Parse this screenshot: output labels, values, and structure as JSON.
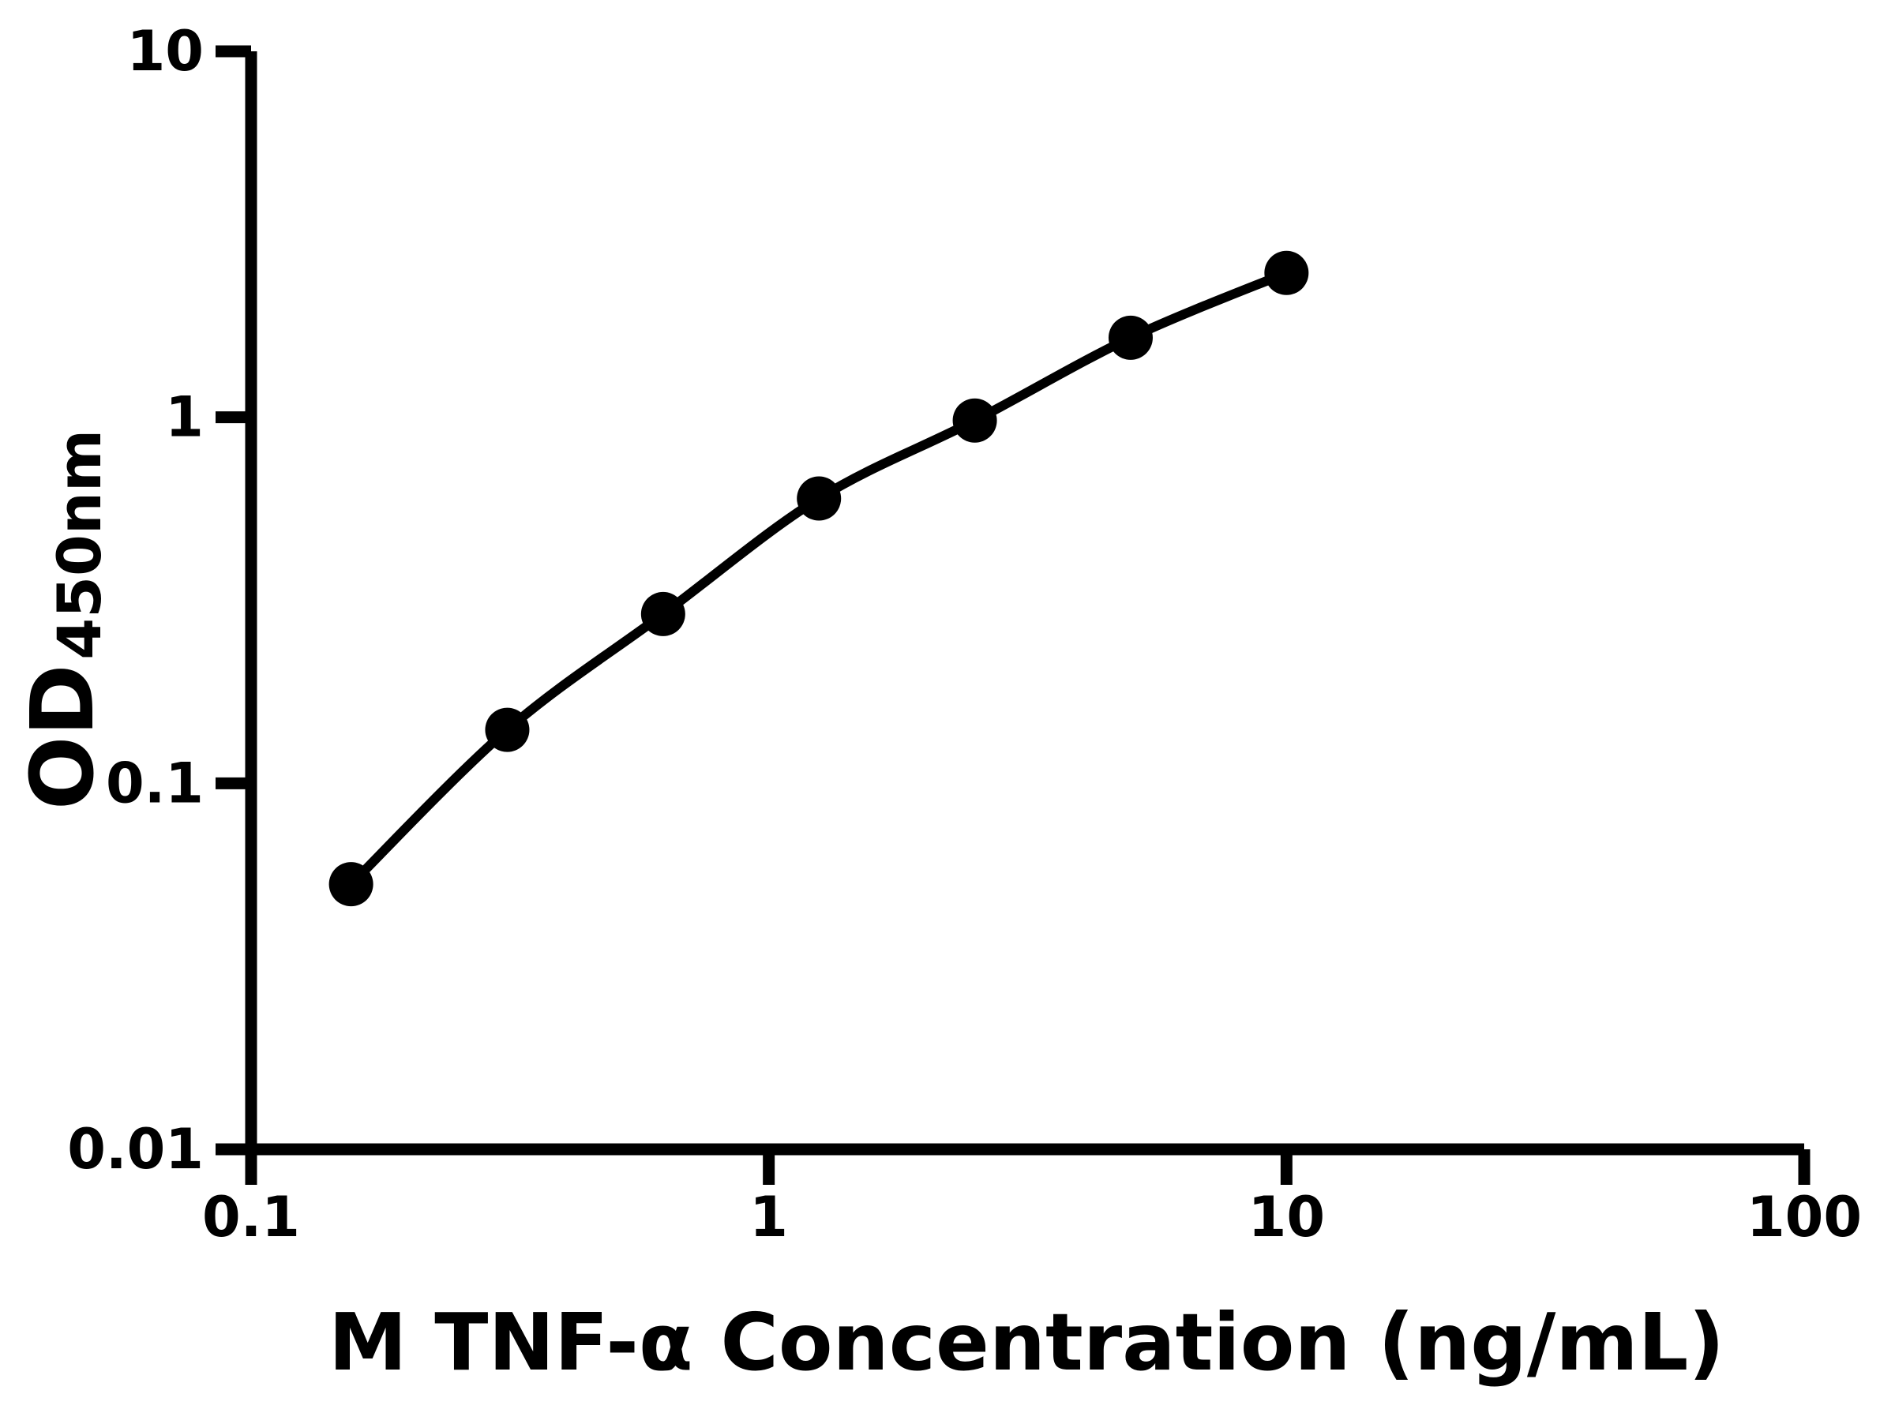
{
  "page": {
    "background": "#ffffff"
  },
  "chart_data": {
    "type": "scatter",
    "subtype": "line+markers",
    "title": "",
    "xlabel": "M TNF-α Concentration (ng/mL)",
    "ylabel_main": "OD",
    "ylabel_sub": "450nm",
    "x_scale": "log",
    "y_scale": "log",
    "xlim": [
      0.1,
      100
    ],
    "ylim": [
      0.01,
      10
    ],
    "x_ticks": [
      0.1,
      1,
      10,
      100
    ],
    "x_tick_labels": [
      "0.1",
      "1",
      "10",
      "100"
    ],
    "y_ticks": [
      10,
      1,
      0.1,
      0.01
    ],
    "y_tick_labels": [
      "10",
      "1",
      "0.1",
      "0.01"
    ],
    "grid": false,
    "legend": "none",
    "series": [
      {
        "x": [
          0.156,
          0.3125,
          0.625,
          1.25,
          2.5,
          5,
          10
        ],
        "y": [
          0.053,
          0.14,
          0.29,
          0.6,
          0.98,
          1.65,
          2.48
        ],
        "marker": "circle",
        "marker_color": "#000000",
        "line_color": "#000000"
      }
    ],
    "colors": {
      "axis": "#000000",
      "text": "#000000",
      "background": "#ffffff"
    }
  }
}
